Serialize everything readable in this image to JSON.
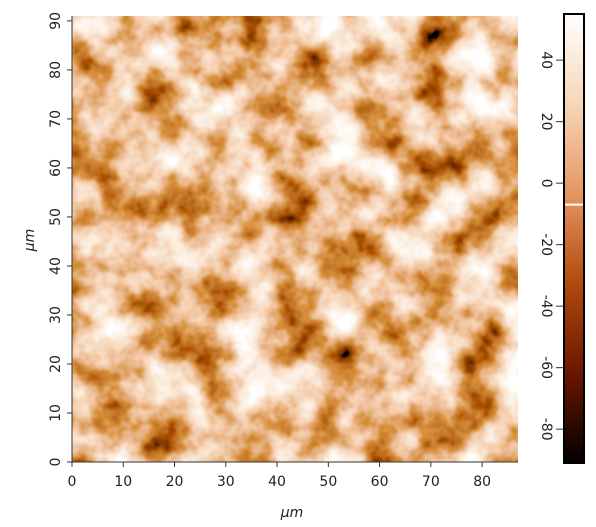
{
  "chart_data": {
    "type": "image",
    "xlabel": "μm",
    "ylabel": "μm",
    "xlim": [
      0,
      87
    ],
    "xticks": [
      0,
      10,
      20,
      30,
      40,
      50,
      60,
      70,
      80
    ],
    "ylim": [
      0,
      91
    ],
    "yticks": [
      0,
      10,
      20,
      30,
      40,
      50,
      60,
      70,
      80,
      90
    ],
    "colormap": [
      "#000000",
      "#6b1600",
      "#b04a0c",
      "#e59662",
      "#f7d6b8",
      "#ffffff"
    ],
    "clim": [
      -91,
      55
    ],
    "cticks": [
      -80,
      -60,
      -40,
      -20,
      0,
      20,
      40
    ],
    "colorbar_marker": -7
  }
}
